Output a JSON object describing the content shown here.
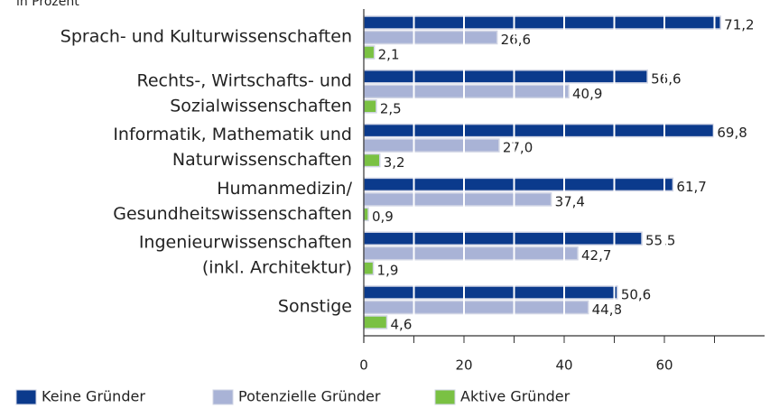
{
  "chart_data": {
    "type": "barh",
    "subtitle": "in Prozent",
    "categories": [
      [
        "Sprach- und Kulturwissenschaften"
      ],
      [
        "Rechts-, Wirtschafts- und",
        "Sozialwissenschaften"
      ],
      [
        "Informatik, Mathematik und",
        "Naturwissenschaften"
      ],
      [
        "Humanmedizin/",
        "Gesundheitswissenschaften"
      ],
      [
        "Ingenieurwissenschaften",
        "(inkl. Architektur)"
      ],
      [
        "Sonstige"
      ]
    ],
    "series": [
      {
        "name": "Keine Gründer",
        "color": "#0b3a8c",
        "values": [
          71.2,
          56.6,
          69.8,
          61.7,
          55.5,
          50.6
        ],
        "value_labels": [
          "71,2",
          "56,6",
          "69,8",
          "61,7",
          "55,5",
          "50,6"
        ]
      },
      {
        "name": "Potenzielle Gründer",
        "color": "#a9b3d6",
        "values": [
          26.6,
          40.9,
          27.0,
          37.4,
          42.7,
          44.8
        ],
        "value_labels": [
          "26,6",
          "40,9",
          "27,0",
          "37,4",
          "42,7",
          "44,8"
        ]
      },
      {
        "name": "Aktive Gründer",
        "color": "#7ac143",
        "values": [
          2.1,
          2.5,
          3.2,
          0.9,
          1.9,
          4.6
        ],
        "value_labels": [
          "2,1",
          "2,5",
          "3,2",
          "0,9",
          "1,9",
          "4,6"
        ]
      }
    ],
    "xlim": [
      0,
      80
    ],
    "xticks": [
      0,
      20,
      40,
      60
    ],
    "xminor_ticks": [
      10,
      30,
      50,
      70
    ],
    "bar_grid_color": "#ffffff"
  }
}
